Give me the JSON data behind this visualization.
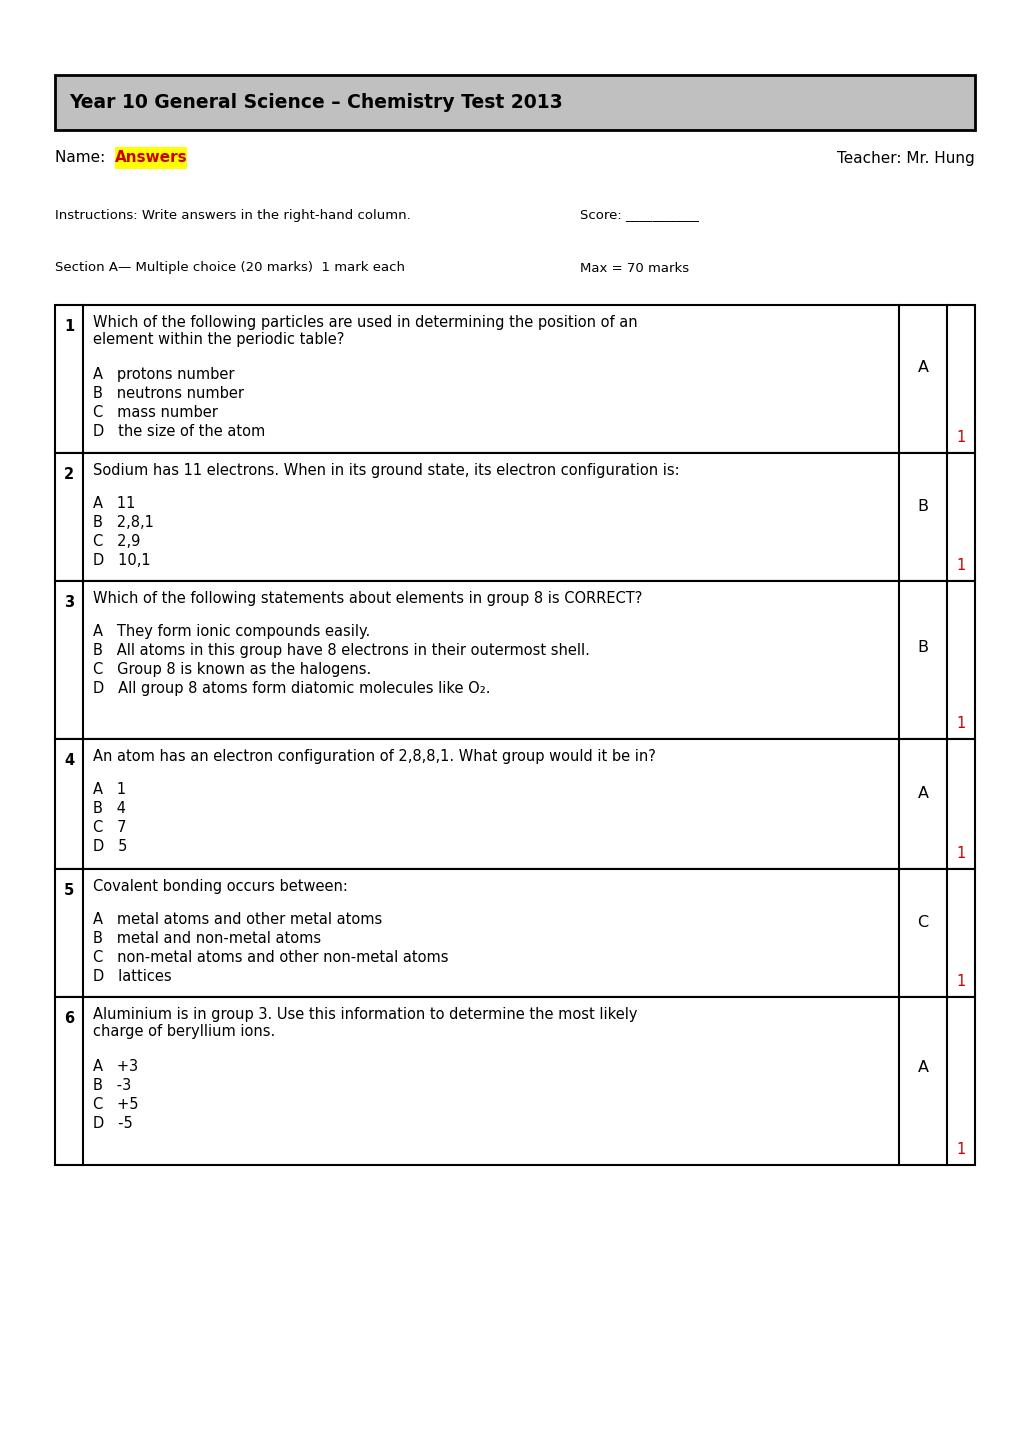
{
  "title": "Year 10 General Science – Chemistry Test 2013",
  "title_bg": "#c0c0c0",
  "name_label": "Name: ",
  "name_value": "Answers",
  "name_highlight": "#ffff00",
  "teacher": "Teacher: Mr. Hung",
  "instructions": "Instructions: Write answers in the right-hand column.",
  "score": "Score: ___________",
  "section": "Section A— Multiple choice (20 marks)  1 mark each",
  "max_marks": "Max = 70 marks",
  "questions": [
    {
      "num": "1",
      "question": "Which of the following particles are used in determining the position of an\nelement within the periodic table?",
      "options": [
        "A   protons number",
        "B   neutrons number",
        "C   mass number",
        "D   the size of the atom"
      ],
      "answer": "A",
      "marks": "1"
    },
    {
      "num": "2",
      "question": "Sodium has 11 electrons. When in its ground state, its electron configuration is:",
      "options": [
        "A   11",
        "B   2,8,1",
        "C   2,9",
        "D   10,1"
      ],
      "answer": "B",
      "marks": "1"
    },
    {
      "num": "3",
      "question": "Which of the following statements about elements in group 8 is CORRECT?",
      "options": [
        "A   They form ionic compounds easily.",
        "B   All atoms in this group have 8 electrons in their outermost shell.",
        "C   Group 8 is known as the halogens.",
        "D   All group 8 atoms form diatomic molecules like O₂."
      ],
      "answer": "B",
      "marks": "1"
    },
    {
      "num": "4",
      "question": "An atom has an electron configuration of 2,8,8,1. What group would it be in?",
      "options": [
        "A   1",
        "B   4",
        "C   7",
        "D   5"
      ],
      "answer": "A",
      "marks": "1"
    },
    {
      "num": "5",
      "question": "Covalent bonding occurs between:",
      "options": [
        "A   metal atoms and other metal atoms",
        "B   metal and non-metal atoms",
        "C   non-metal atoms and other non-metal atoms",
        "D   lattices"
      ],
      "answer": "C",
      "marks": "1"
    },
    {
      "num": "6",
      "question": "Aluminium is in group 3. Use this information to determine the most likely\ncharge of beryllium ions.",
      "options": [
        "A   +3",
        "B   -3",
        "C   +5",
        "D   -5"
      ],
      "answer": "A",
      "marks": "1"
    }
  ],
  "page_bg": "#ffffff",
  "text_color": "#000000",
  "red_color": "#cc0000",
  "border_color": "#000000",
  "title_fontsize": 13.5,
  "body_fontsize": 10.5,
  "small_fontsize": 9.5,
  "answer_fontsize": 11.5
}
